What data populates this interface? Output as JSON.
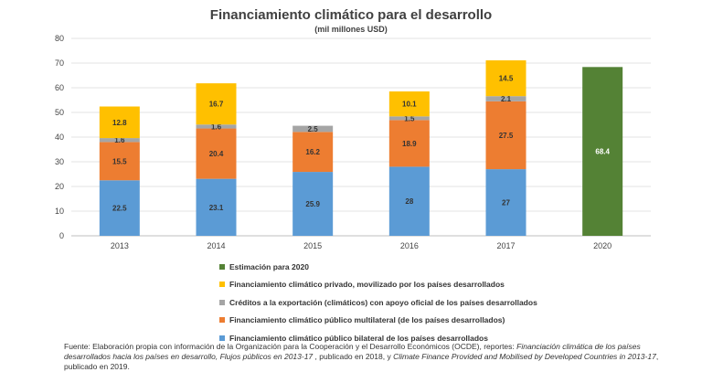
{
  "chart_data": {
    "type": "bar",
    "stacked": true,
    "title": "Financiamiento climático para el desarrollo",
    "subtitle": "(mil millones USD)",
    "categories": [
      "2013",
      "2014",
      "2015",
      "2016",
      "2017",
      "2020"
    ],
    "ylim": [
      0,
      80
    ],
    "yticks": [
      "0",
      "10",
      "20",
      "30",
      "40",
      "50",
      "60",
      "70",
      "80"
    ],
    "grid": true,
    "series": [
      {
        "name": "Financiamiento climático público bilateral de los países desarrollados",
        "color": "#5b9bd5",
        "values": [
          22.5,
          23.1,
          25.9,
          28,
          27,
          null
        ],
        "labels": [
          "22.5",
          "23.1",
          "25.9",
          "28",
          "27",
          ""
        ]
      },
      {
        "name": "Financiamiento climático público multilateral (de los países desarrollados)",
        "color": "#ed7d31",
        "values": [
          15.5,
          20.4,
          16.2,
          18.9,
          27.5,
          null
        ],
        "labels": [
          "15.5",
          "20.4",
          "16.2",
          "18.9",
          "27.5",
          ""
        ]
      },
      {
        "name": "Créditos a la exportación (climáticos) con apoyo oficial de los países desarrollados",
        "color": "#a5a5a5",
        "values": [
          1.6,
          1.6,
          2.5,
          1.5,
          2.1,
          null
        ],
        "labels": [
          "1.6",
          "1.6",
          "2.5",
          "1.5",
          "2.1",
          ""
        ]
      },
      {
        "name": "Financiamiento climático privado, movilizado por los países desarrollados",
        "color": "#ffc000",
        "values": [
          12.8,
          16.7,
          null,
          10.1,
          14.5,
          null
        ],
        "labels": [
          "12.8",
          "16.7",
          "",
          "10.1",
          "14.5",
          ""
        ]
      },
      {
        "name": "Estimación para 2020",
        "color": "#548235",
        "values": [
          null,
          null,
          null,
          null,
          null,
          68.4
        ],
        "labels": [
          "",
          "",
          "",
          "",
          "",
          "68.4"
        ]
      }
    ],
    "legend_order": [
      4,
      3,
      2,
      1,
      0
    ],
    "legend_position": "bottom"
  },
  "source_note": {
    "prefix": "Fuente: Elaboración propia con información de la Organización para la Cooperación y el Desarrollo Económicos (OCDE), reportes: ",
    "title1": "Financiación climática de los países desarrollados hacia los países en desarrollo, Flujos públicos en 2013-17",
    "mid": " , publicado en 2018, y ",
    "title2": "Climate Finance Provided and Mobilised by Developed Countries in 2013-17",
    "suffix": ",  publicado en 2019."
  }
}
